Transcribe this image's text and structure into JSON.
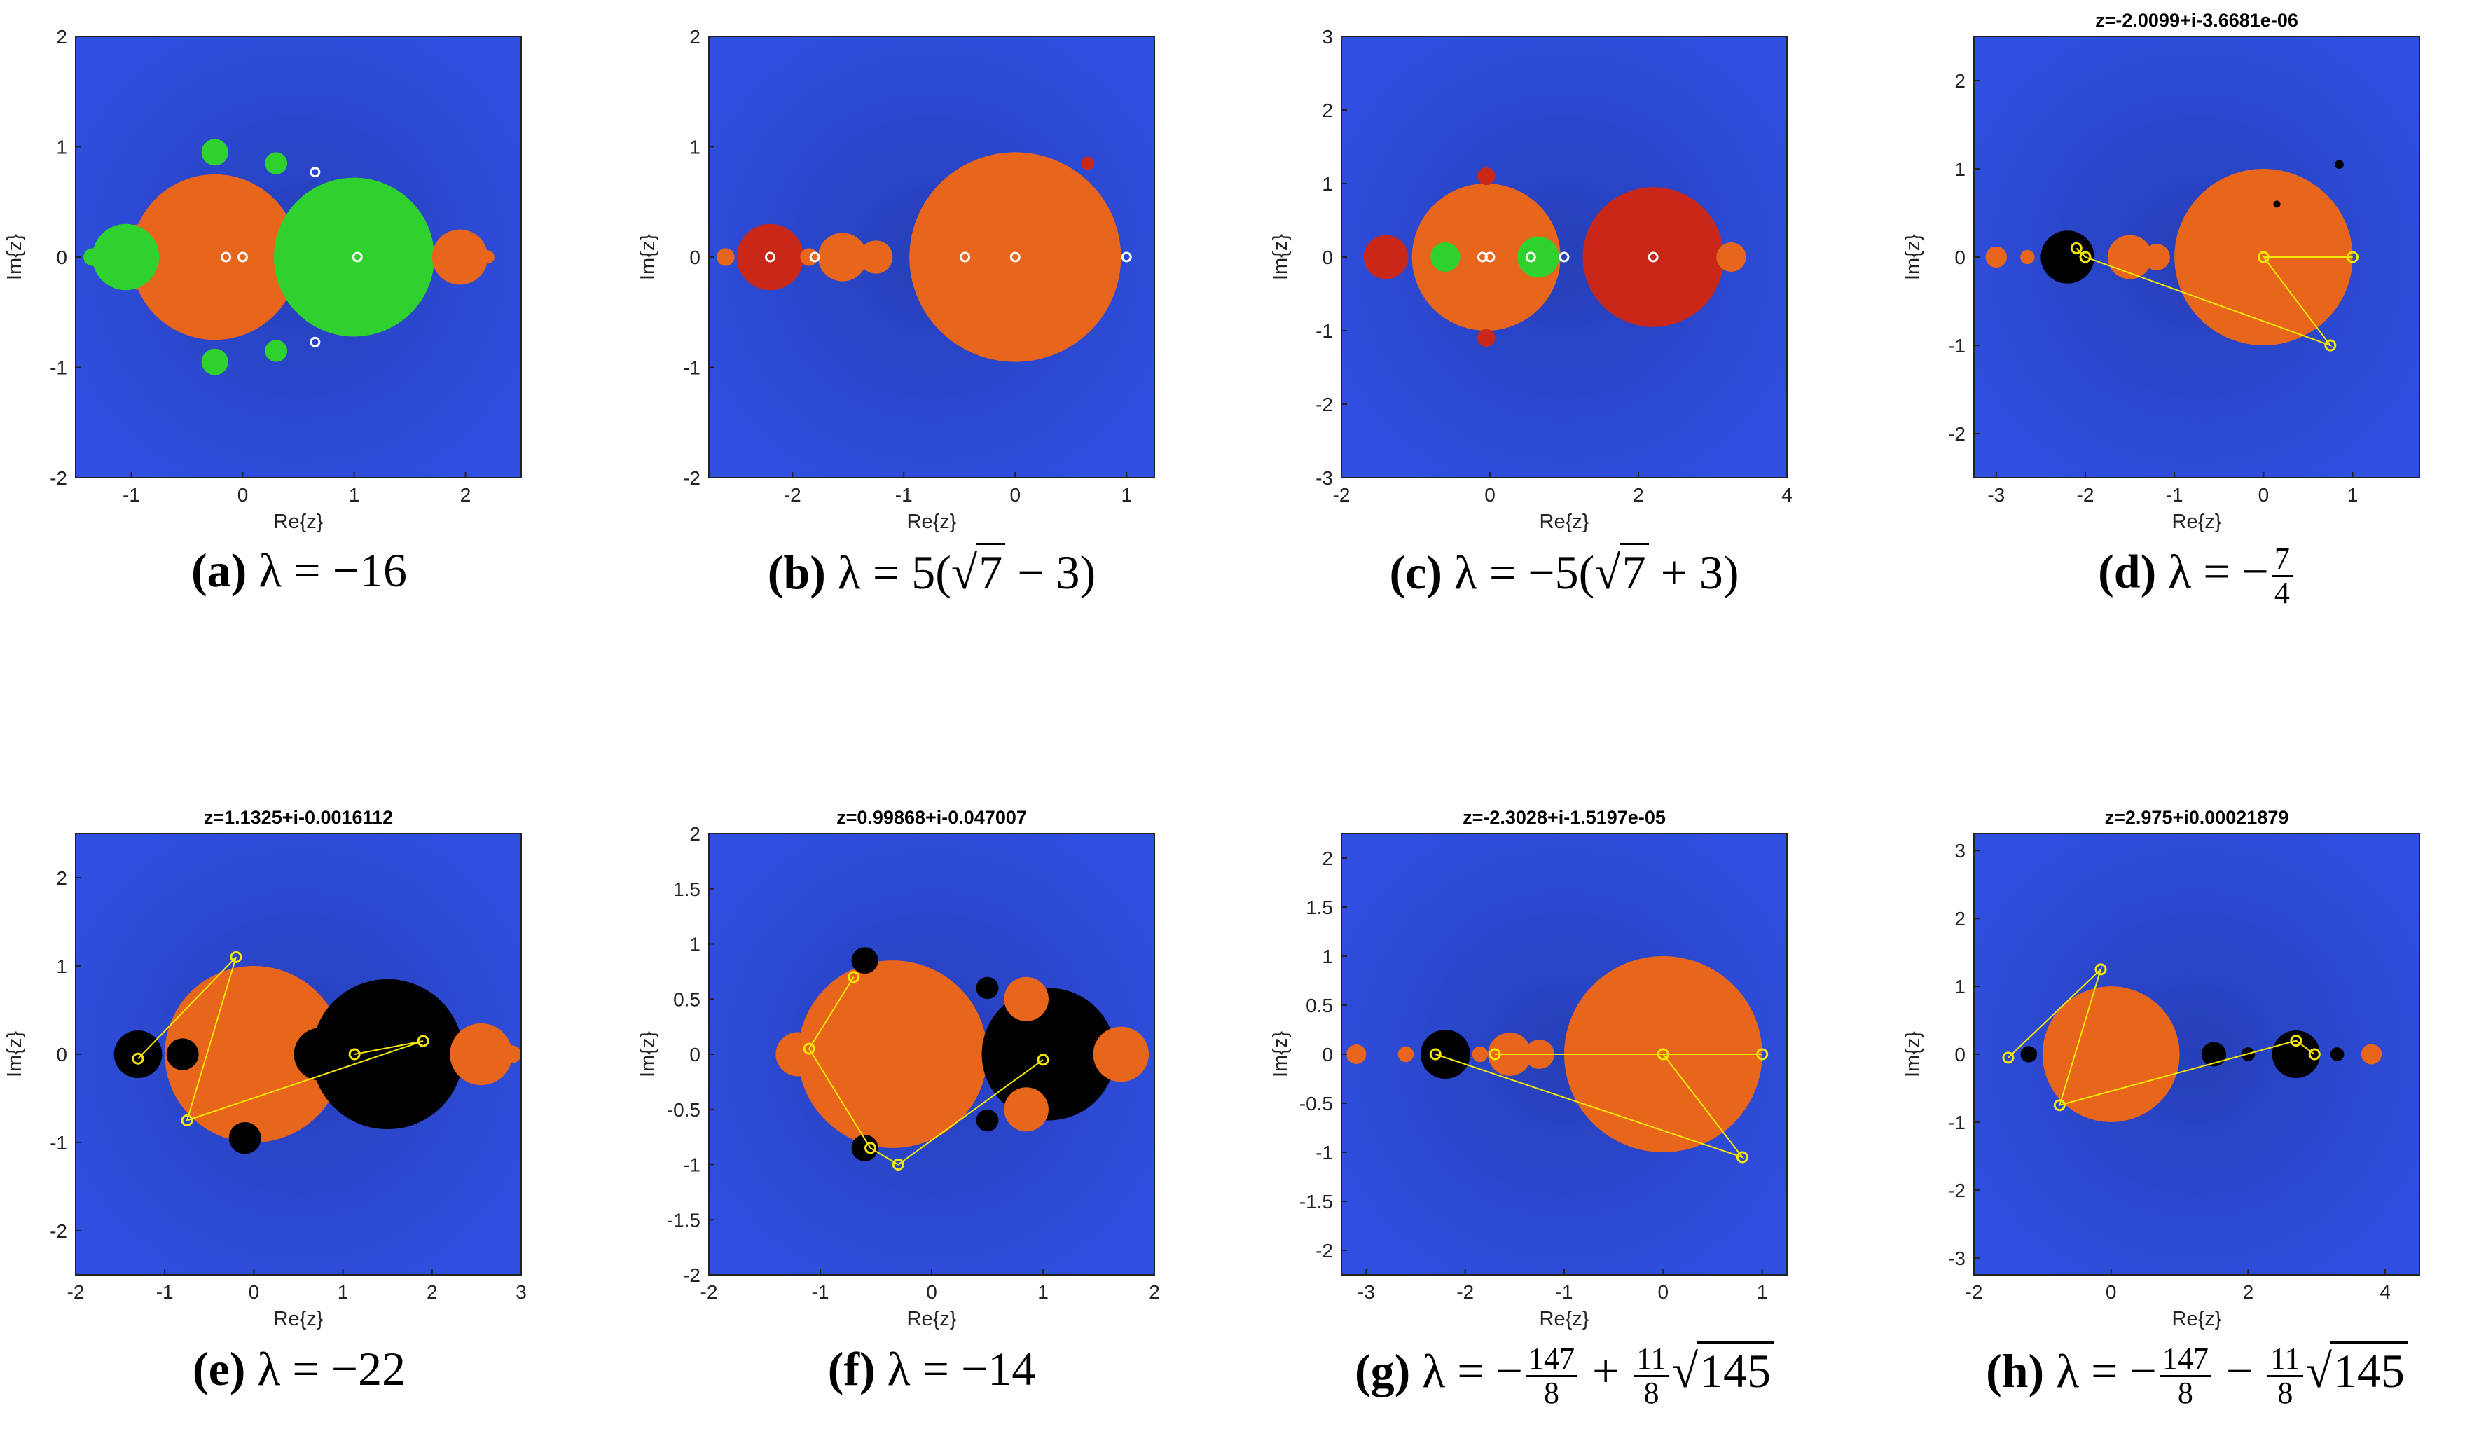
{
  "colors": {
    "blue": "#2f4fe0",
    "orange": "#e8651c",
    "green": "#2fd12f",
    "red": "#c92818",
    "black": "#000000",
    "yellow": "#f5e800",
    "white_marker": "#ffffff"
  },
  "panels": [
    {
      "id": "a",
      "title": "",
      "xlim": [
        -1.5,
        2.5
      ],
      "ylim": [
        -2,
        2
      ],
      "xticks": [
        -1,
        0,
        1,
        2
      ],
      "yticks": [
        -2,
        -1,
        0,
        1,
        2
      ],
      "xlabel": "Re{z}",
      "ylabel": "Im{z}",
      "caption": {
        "letter": "a",
        "prefix": "λ = −16",
        "kind": "plain"
      },
      "points": [
        {
          "x": 0.65,
          "y": 0.77
        },
        {
          "x": 0.65,
          "y": -0.77
        },
        {
          "x": 1.03,
          "y": 0
        },
        {
          "x": 0,
          "y": 0
        },
        {
          "x": -0.15,
          "y": 0
        }
      ]
    },
    {
      "id": "b",
      "title": "",
      "xlim": [
        -2.75,
        1.25
      ],
      "ylim": [
        -2,
        2
      ],
      "xticks": [
        -2,
        -1,
        0,
        1
      ],
      "yticks": [
        -2,
        -1,
        0,
        1,
        2
      ],
      "xlabel": "Re{z}",
      "ylabel": "Im{z}",
      "caption": {
        "letter": "b",
        "prefix": "λ = 5(",
        "sqrt": "7",
        "suffix": " − 3)",
        "kind": "sqrt"
      },
      "points": [
        {
          "x": -2.2,
          "y": 0
        },
        {
          "x": -1.8,
          "y": 0
        },
        {
          "x": -0.45,
          "y": 0
        },
        {
          "x": 0,
          "y": 0
        },
        {
          "x": 1,
          "y": 0
        }
      ]
    },
    {
      "id": "c",
      "title": "",
      "xlim": [
        -2,
        4
      ],
      "ylim": [
        -3,
        3
      ],
      "xticks": [
        -2,
        0,
        2,
        4
      ],
      "yticks": [
        -3,
        -2,
        -1,
        0,
        1,
        2,
        3
      ],
      "xlabel": "Re{z}",
      "ylabel": "Im{z}",
      "caption": {
        "letter": "c",
        "prefix": "λ = −5(",
        "sqrt": "7",
        "suffix": " + 3)",
        "kind": "sqrt"
      },
      "points": [
        {
          "x": -0.1,
          "y": 0
        },
        {
          "x": 0,
          "y": 0
        },
        {
          "x": 1,
          "y": 0
        },
        {
          "x": 2.2,
          "y": 0
        },
        {
          "x": 0.55,
          "y": 0
        }
      ]
    },
    {
      "id": "d",
      "title": "z=-2.0099+i-3.6681e-06",
      "xlim": [
        -3.25,
        1.75
      ],
      "ylim": [
        -2.5,
        2.5
      ],
      "xticks": [
        -3,
        -2,
        -1,
        0,
        1
      ],
      "yticks": [
        -2,
        -1,
        0,
        1,
        2
      ],
      "xlabel": "Re{z}",
      "ylabel": "Im{z}",
      "caption": {
        "letter": "d",
        "prefix": "λ = −",
        "num": "7",
        "den": "4",
        "kind": "frac"
      },
      "points": [
        {
          "x": -2.1,
          "y": 0.1
        },
        {
          "x": -2.0,
          "y": 0
        },
        {
          "x": 0.75,
          "y": -1.0
        },
        {
          "x": 0,
          "y": 0
        },
        {
          "x": 1,
          "y": 0
        }
      ]
    },
    {
      "id": "e",
      "title": "z=1.1325+i-0.0016112",
      "xlim": [
        -2,
        3
      ],
      "ylim": [
        -2.5,
        2.5
      ],
      "xticks": [
        -2,
        -1,
        0,
        1,
        2,
        3
      ],
      "yticks": [
        -2,
        -1,
        0,
        1,
        2
      ],
      "xlabel": "Re{z}",
      "ylabel": "Im{z}",
      "caption": {
        "letter": "e",
        "prefix": "λ = −22",
        "kind": "plain"
      },
      "points": [
        {
          "x": -1.3,
          "y": -0.05
        },
        {
          "x": -0.2,
          "y": 1.1
        },
        {
          "x": -0.75,
          "y": -0.75
        },
        {
          "x": 1.9,
          "y": 0.15
        },
        {
          "x": 1.13,
          "y": 0
        }
      ]
    },
    {
      "id": "f",
      "title": "z=0.99868+i-0.047007",
      "xlim": [
        -2,
        2
      ],
      "ylim": [
        -2,
        2
      ],
      "xticks": [
        -2,
        -1,
        0,
        1,
        2
      ],
      "yticks": [
        -2,
        -1.5,
        -1,
        -0.5,
        0,
        0.5,
        1,
        1.5,
        2
      ],
      "xlabel": "Re{z}",
      "ylabel": "Im{z}",
      "caption": {
        "letter": "f",
        "prefix": "λ = −14",
        "kind": "plain"
      },
      "points": [
        {
          "x": -0.7,
          "y": 0.7
        },
        {
          "x": -1.1,
          "y": 0.05
        },
        {
          "x": -0.55,
          "y": -0.85
        },
        {
          "x": -0.3,
          "y": -1.0
        },
        {
          "x": 1.0,
          "y": -0.05
        }
      ]
    },
    {
      "id": "g",
      "title": "z=-2.3028+i-1.5197e-05",
      "xlim": [
        -3.25,
        1.25
      ],
      "ylim": [
        -2.25,
        2.25
      ],
      "xticks": [
        -3,
        -2,
        -1,
        0,
        1
      ],
      "yticks": [
        -2,
        -1.5,
        -1,
        -0.5,
        0,
        0.5,
        1,
        1.5,
        2
      ],
      "xlabel": "Re{z}",
      "ylabel": "Im{z}",
      "caption": {
        "letter": "g",
        "prefix": "λ = −",
        "num": "147",
        "den": "8",
        "mid": " + ",
        "num2": "11",
        "den2": "8",
        "sqrt": "145",
        "kind": "frac2"
      },
      "points": [
        {
          "x": -2.3,
          "y": 0
        },
        {
          "x": 0.8,
          "y": -1.05
        },
        {
          "x": 0,
          "y": 0
        },
        {
          "x": 1,
          "y": 0
        },
        {
          "x": -1.7,
          "y": 0
        }
      ]
    },
    {
      "id": "h",
      "title": "z=2.975+i0.00021879",
      "xlim": [
        -2,
        4.5
      ],
      "ylim": [
        -3.25,
        3.25
      ],
      "xticks": [
        -2,
        0,
        2,
        4
      ],
      "yticks": [
        -3,
        -2,
        -1,
        0,
        1,
        2,
        3
      ],
      "xlabel": "Re{z}",
      "ylabel": "Im{z}",
      "caption": {
        "letter": "h",
        "prefix": "λ = −",
        "num": "147",
        "den": "8",
        "mid": " − ",
        "num2": "11",
        "den2": "8",
        "sqrt": "145",
        "kind": "frac2"
      },
      "points": [
        {
          "x": -1.5,
          "y": -0.05
        },
        {
          "x": -0.15,
          "y": 1.25
        },
        {
          "x": -0.75,
          "y": -0.75
        },
        {
          "x": 2.7,
          "y": 0.2
        },
        {
          "x": 2.97,
          "y": 0
        }
      ]
    }
  ]
}
